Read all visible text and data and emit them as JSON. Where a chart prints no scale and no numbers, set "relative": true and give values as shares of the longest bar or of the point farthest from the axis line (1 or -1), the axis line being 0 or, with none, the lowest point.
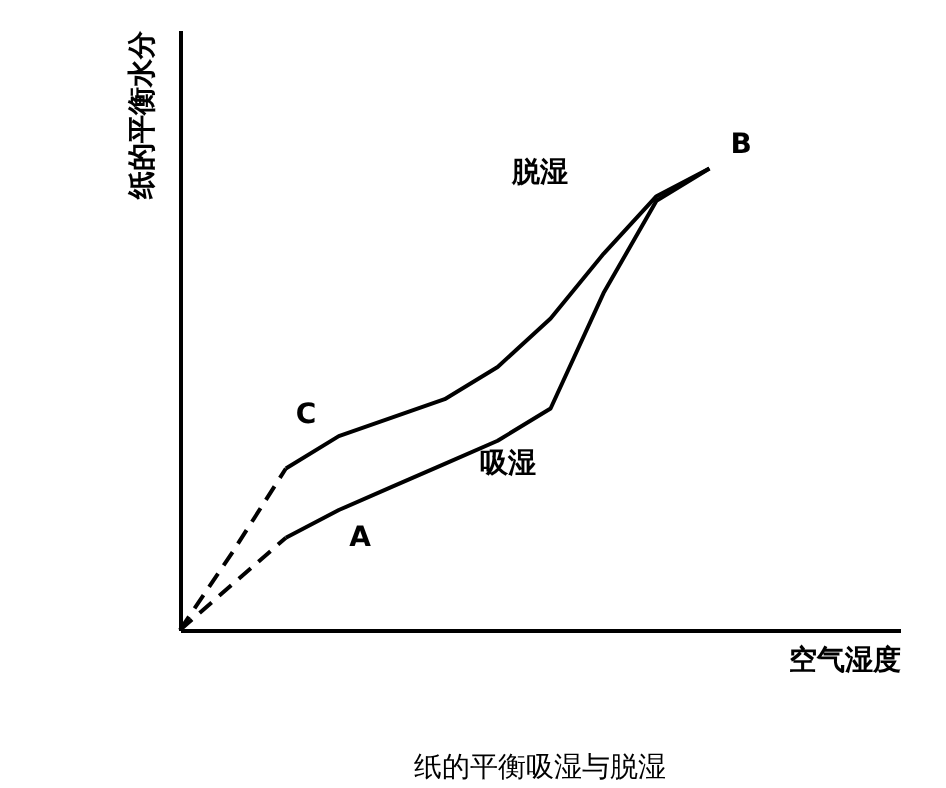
{
  "chart_data": {
    "type": "line",
    "title": "纸的平衡吸湿与脱湿",
    "xlabel": "空气湿度",
    "ylabel": "纸的平衡水分",
    "relative": true,
    "categories": [
      null,
      null,
      null,
      null,
      null,
      null,
      null,
      null,
      null,
      null,
      null
    ],
    "series": [
      {
        "color": "#000000",
        "line_style": "dashed",
        "values": [
          0,
          0.17,
          0.35,
          null,
          null,
          null,
          null,
          null,
          null,
          null,
          null
        ]
      },
      {
        "color": "#000000",
        "line_style": "solid",
        "values": [
          null,
          null,
          0.35,
          0.42,
          0.46,
          0.5,
          0.57,
          0.675,
          0.815,
          0.94,
          1.0
        ]
      },
      {
        "color": "#000000",
        "line_style": "dashed",
        "values": [
          0,
          0.1,
          0.2,
          null,
          null,
          null,
          null,
          null,
          null,
          null,
          null
        ]
      },
      {
        "color": "#000000",
        "line_style": "solid",
        "values": [
          null,
          null,
          0.2,
          0.26,
          0.31,
          0.36,
          0.41,
          0.48,
          0.73,
          0.93,
          1.0
        ]
      }
    ],
    "annotations": [
      "B",
      "脱湿",
      "C",
      "吸湿",
      "A"
    ]
  }
}
